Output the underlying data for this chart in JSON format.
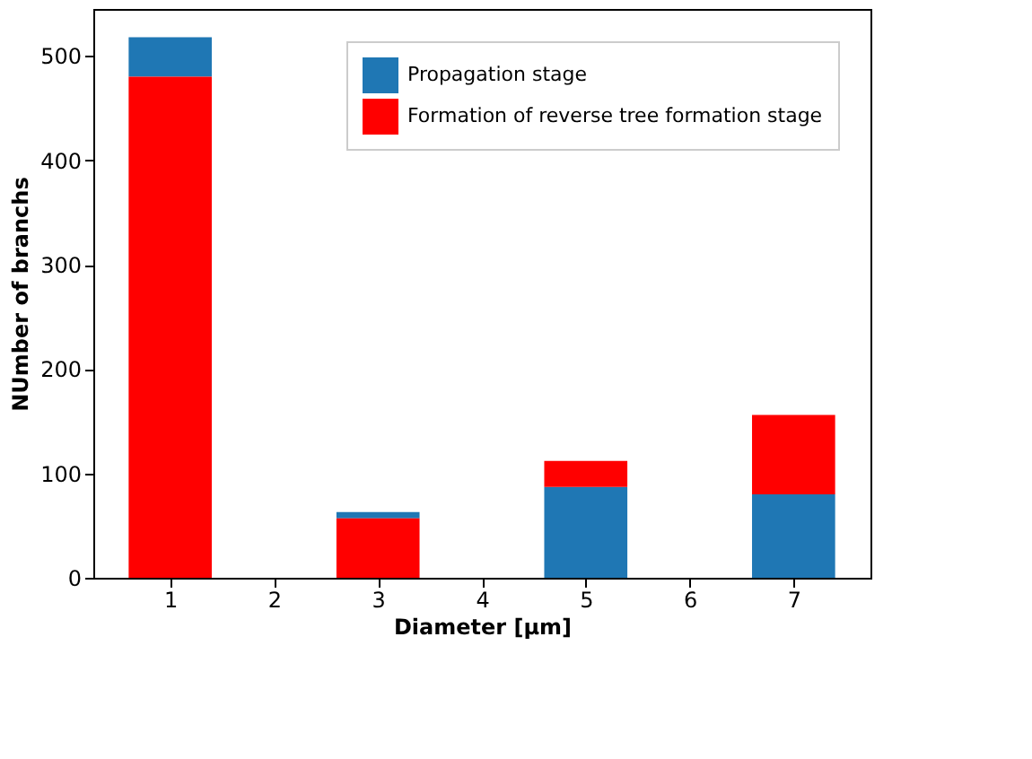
{
  "chart_data": {
    "type": "bar",
    "xlabel": "Diameter [µm]",
    "ylabel": "NUmber of branchs",
    "x": [
      1,
      3,
      5,
      7
    ],
    "xlim": [
      0.26,
      7.74
    ],
    "xticks": [
      1,
      2,
      3,
      4,
      5,
      6,
      7
    ],
    "ylim": [
      0,
      545
    ],
    "yticks": [
      0,
      100,
      200,
      300,
      400,
      500
    ],
    "series": [
      {
        "name": "Propagation stage",
        "color": "#1f77b4",
        "values": [
          38,
          6,
          87,
          80
        ],
        "base": [
          480,
          57,
          0,
          0
        ]
      },
      {
        "name": "Formation of reverse tree formation stage",
        "color": "#ff0000",
        "values": [
          480,
          57,
          25,
          76
        ],
        "base": [
          0,
          0,
          87,
          80
        ]
      }
    ],
    "grid": false,
    "legend": "top right"
  }
}
